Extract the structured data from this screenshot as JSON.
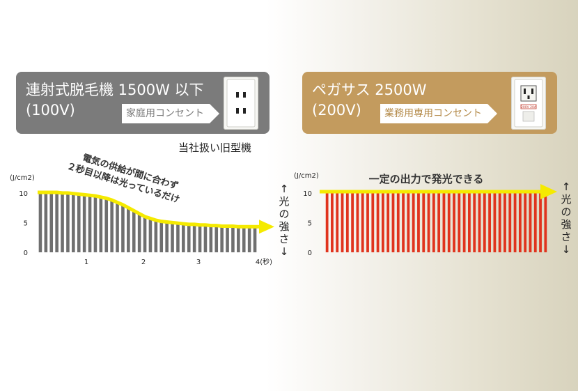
{
  "left_box": {
    "title": "連射式脱毛機 1500W 以下",
    "voltage": "(100V)",
    "tag": "家庭用コンセント",
    "icon": "household-outlet-icon"
  },
  "right_box": {
    "title": "ペガサス 2500W",
    "voltage": "(200V)",
    "tag": "業務用専用コンセント",
    "icon": "industrial-outlet-icon",
    "outlet_plate_text": "200V 20A"
  },
  "old_model_label": "当社扱い旧型機",
  "colors": {
    "gray_box": "#7b7b7b",
    "gold_box": "#c39b5e",
    "gray_bar": "#6f6f6f",
    "red_bar": "#e0331d",
    "arrow_yellow": "#f5ea00"
  },
  "side_label": {
    "arrow_up": "↑",
    "chars": [
      "光",
      "の",
      "強",
      "さ"
    ],
    "arrow_down": "↓"
  },
  "chart_data": [
    {
      "type": "bar",
      "ylabel": "(J/cm2)",
      "yticks": [
        "0",
        "5",
        "10"
      ],
      "xticks": [
        "1",
        "2",
        "3",
        "4(秒)"
      ],
      "xtick_values": [
        1,
        2,
        3,
        4
      ],
      "ylim": [
        0,
        10
      ],
      "xlim": [
        0,
        4
      ],
      "annotation_lines": [
        "電気の供給が間に合わず",
        "２秒目以降は光っているだけ"
      ],
      "x": [
        0.0,
        0.1,
        0.2,
        0.3,
        0.4,
        0.5,
        0.6,
        0.7,
        0.8,
        0.9,
        1.0,
        1.1,
        1.2,
        1.3,
        1.4,
        1.5,
        1.6,
        1.7,
        1.8,
        1.9,
        2.0,
        2.1,
        2.2,
        2.3,
        2.4,
        2.5,
        2.6,
        2.7,
        2.8,
        2.9,
        3.0,
        3.1,
        3.2,
        3.3,
        3.4,
        3.5,
        3.6,
        3.7,
        3.8,
        3.9
      ],
      "values": [
        10.0,
        10.0,
        10.0,
        10.0,
        9.9,
        9.9,
        9.8,
        9.7,
        9.6,
        9.5,
        9.4,
        9.2,
        9.0,
        8.7,
        8.3,
        7.9,
        7.4,
        6.9,
        6.4,
        5.9,
        5.6,
        5.3,
        5.1,
        5.0,
        4.9,
        4.8,
        4.7,
        4.6,
        4.6,
        4.5,
        4.5,
        4.4,
        4.4,
        4.3,
        4.3,
        4.3,
        4.2,
        4.2,
        4.2,
        4.2
      ]
    },
    {
      "type": "bar",
      "ylabel": "(J/cm2)",
      "yticks": [
        "0",
        "5",
        "10"
      ],
      "ylim": [
        0,
        10
      ],
      "annotation": "一定の出力で発光できる",
      "bar_count": 44,
      "values": [
        10,
        10,
        10,
        10,
        10,
        10,
        10,
        10,
        10,
        10,
        10,
        10,
        10,
        10,
        10,
        10,
        10,
        10,
        10,
        10,
        10,
        10,
        10,
        10,
        10,
        10,
        10,
        10,
        10,
        10,
        10,
        10,
        10,
        10,
        10,
        10,
        10,
        10,
        10,
        10,
        10,
        10,
        10,
        10
      ]
    }
  ]
}
